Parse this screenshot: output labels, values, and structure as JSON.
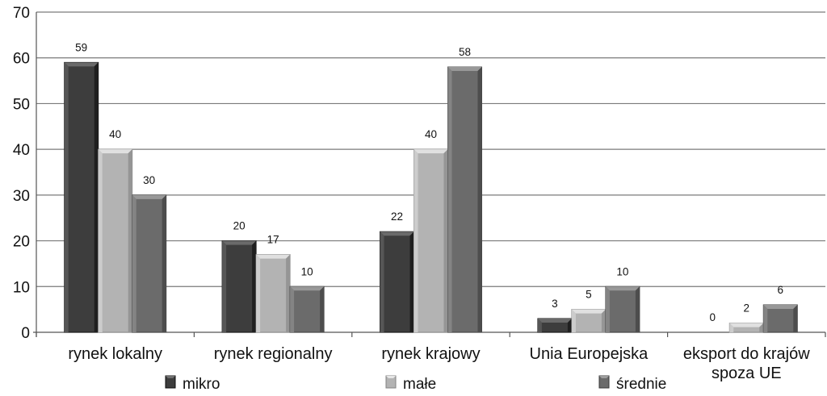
{
  "chart_data": {
    "type": "bar",
    "categories": [
      [
        "rynek lokalny"
      ],
      [
        "rynek regionalny"
      ],
      [
        "rynek krajowy"
      ],
      [
        "Unia Europejska"
      ],
      [
        "eksport do krajów",
        "spoza UE"
      ]
    ],
    "series": [
      {
        "name": "mikro",
        "values": [
          59,
          20,
          22,
          3,
          0
        ],
        "color": "#3d3d3d"
      },
      {
        "name": "małe",
        "values": [
          40,
          17,
          40,
          5,
          2
        ],
        "color": "#b3b3b3"
      },
      {
        "name": "średnie",
        "values": [
          30,
          10,
          58,
          10,
          6
        ],
        "color": "#6b6b6b"
      }
    ],
    "ylim": [
      0,
      70
    ],
    "yticks": [
      0,
      10,
      20,
      30,
      40,
      50,
      60,
      70
    ],
    "grid": true,
    "legend": "bottom"
  }
}
